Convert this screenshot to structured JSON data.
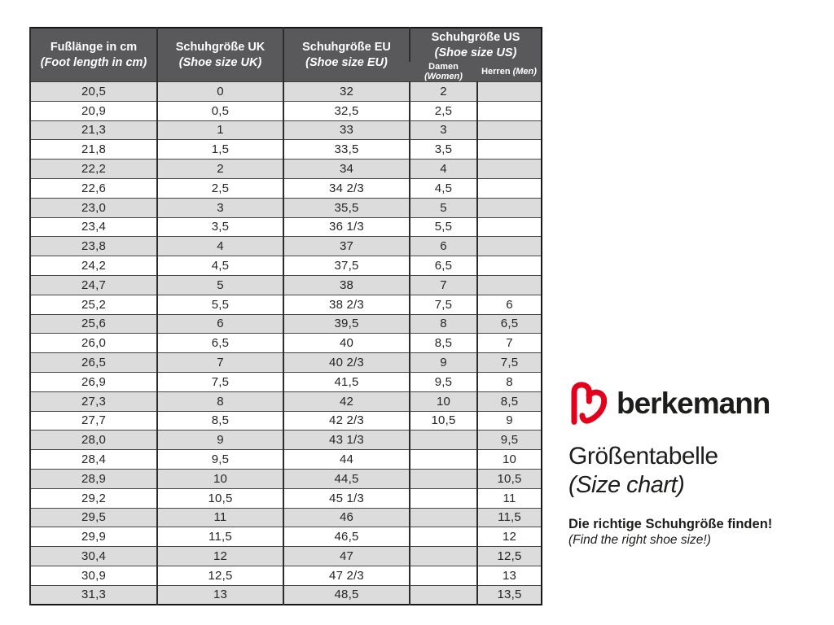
{
  "colors": {
    "brand_red": "#e2001a",
    "header_bg": "#59595b",
    "row_alt_gray": "#dcdcdc",
    "row_white": "#ffffff",
    "text_dark": "#1d1d1b"
  },
  "header": {
    "col_foot": {
      "title": "Fußlänge in cm",
      "subtitle": "(Foot length in cm)"
    },
    "col_uk": {
      "title": "Schuhgröße UK",
      "subtitle": "(Shoe size UK)"
    },
    "col_eu": {
      "title": "Schuhgröße EU",
      "subtitle": "(Shoe size EU)"
    },
    "col_us": {
      "title": "Schuhgröße US",
      "subtitle": "(Shoe size US)"
    },
    "sub_damen": {
      "label": "Damen",
      "label_italic": "(Women)"
    },
    "sub_herren": {
      "label": "Herren",
      "label_italic": "(Men)"
    }
  },
  "chart_data": {
    "type": "table",
    "title": "Größentabelle (Size chart)",
    "columns": [
      "Fußlänge in cm (Foot length in cm)",
      "Schuhgröße UK (Shoe size UK)",
      "Schuhgröße EU (Shoe size EU)",
      "Schuhgröße US – Damen (Women)",
      "Schuhgröße US – Herren (Men)"
    ],
    "rows": [
      [
        "20,5",
        "0",
        "32",
        "2",
        ""
      ],
      [
        "20,9",
        "0,5",
        "32,5",
        "2,5",
        ""
      ],
      [
        "21,3",
        "1",
        "33",
        "3",
        ""
      ],
      [
        "21,8",
        "1,5",
        "33,5",
        "3,5",
        ""
      ],
      [
        "22,2",
        "2",
        "34",
        "4",
        ""
      ],
      [
        "22,6",
        "2,5",
        "34 2/3",
        "4,5",
        ""
      ],
      [
        "23,0",
        "3",
        "35,5",
        "5",
        ""
      ],
      [
        "23,4",
        "3,5",
        "36 1/3",
        "5,5",
        ""
      ],
      [
        "23,8",
        "4",
        "37",
        "6",
        ""
      ],
      [
        "24,2",
        "4,5",
        "37,5",
        "6,5",
        ""
      ],
      [
        "24,7",
        "5",
        "38",
        "7",
        ""
      ],
      [
        "25,2",
        "5,5",
        "38 2/3",
        "7,5",
        "6"
      ],
      [
        "25,6",
        "6",
        "39,5",
        "8",
        "6,5"
      ],
      [
        "26,0",
        "6,5",
        "40",
        "8,5",
        "7"
      ],
      [
        "26,5",
        "7",
        "40 2/3",
        "9",
        "7,5"
      ],
      [
        "26,9",
        "7,5",
        "41,5",
        "9,5",
        "8"
      ],
      [
        "27,3",
        "8",
        "42",
        "10",
        "8,5"
      ],
      [
        "27,7",
        "8,5",
        "42 2/3",
        "10,5",
        "9"
      ],
      [
        "28,0",
        "9",
        "43 1/3",
        "",
        "9,5"
      ],
      [
        "28,4",
        "9,5",
        "44",
        "",
        "10"
      ],
      [
        "28,9",
        "10",
        "44,5",
        "",
        "10,5"
      ],
      [
        "29,2",
        "10,5",
        "45 1/3",
        "",
        "11"
      ],
      [
        "29,5",
        "11",
        "46",
        "",
        "11,5"
      ],
      [
        "29,9",
        "11,5",
        "46,5",
        "",
        "12"
      ],
      [
        "30,4",
        "12",
        "47",
        "",
        "12,5"
      ],
      [
        "30,9",
        "12,5",
        "47 2/3",
        "",
        "13"
      ],
      [
        "31,3",
        "13",
        "48,5",
        "",
        "13,5"
      ]
    ]
  },
  "branding": {
    "brand": "berkemann",
    "title": "Größentabelle",
    "title_en": "(Size chart)",
    "tagline": "Die richtige Schuhgröße finden!",
    "tagline_en": "(Find the right shoe size!)"
  }
}
